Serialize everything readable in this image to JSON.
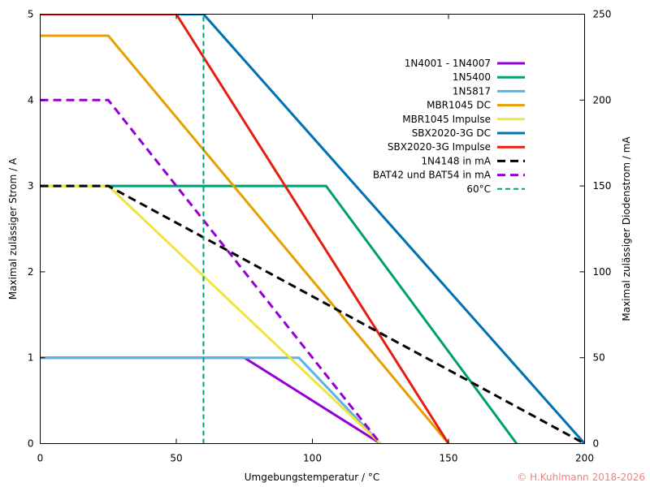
{
  "chart_data": {
    "type": "line",
    "xlabel": "Umgebungstemperatur / °C",
    "ylabel": "Maximal zulässiger Strom / A",
    "y2label": "Maximal zulässiger Diodenstrom / mA",
    "xlim": [
      0,
      200
    ],
    "ylim": [
      0,
      5
    ],
    "y2lim": [
      0,
      250
    ],
    "x_ticks": [
      0,
      50,
      100,
      150,
      200
    ],
    "y_ticks": [
      0,
      1,
      2,
      3,
      4,
      5
    ],
    "y2_ticks": [
      0,
      50,
      100,
      150,
      200,
      250
    ],
    "grid": false,
    "legend_position": "top-right",
    "copyright": "© H.Kuhlmann 2018-2026",
    "series": [
      {
        "name": "1N4001 - 1N4007",
        "color": "#9400d3",
        "dash": "solid",
        "axis": "y",
        "x": [
          0,
          75,
          125
        ],
        "y": [
          1,
          1,
          0
        ]
      },
      {
        "name": "1N5400",
        "color": "#009e73",
        "dash": "solid",
        "axis": "y",
        "x": [
          0,
          105,
          175
        ],
        "y": [
          3,
          3,
          0
        ]
      },
      {
        "name": "1N5817",
        "color": "#56b4e9",
        "dash": "solid",
        "axis": "y",
        "x": [
          0,
          95,
          125
        ],
        "y": [
          1,
          1,
          0
        ]
      },
      {
        "name": "MBR1045 DC",
        "color": "#e69f00",
        "dash": "solid",
        "axis": "y",
        "x": [
          0,
          25,
          150
        ],
        "y": [
          4.75,
          4.75,
          0
        ]
      },
      {
        "name": "MBR1045 Impulse",
        "color": "#f0e442",
        "dash": "solid",
        "axis": "y",
        "x": [
          0,
          25,
          125
        ],
        "y": [
          3,
          3,
          0
        ]
      },
      {
        "name": "SBX2020-3G DC",
        "color": "#0072b2",
        "dash": "solid",
        "axis": "y",
        "x": [
          0,
          60,
          200
        ],
        "y": [
          5,
          5,
          0
        ]
      },
      {
        "name": "SBX2020-3G Impulse",
        "color": "#e51e10",
        "dash": "solid",
        "axis": "y",
        "x": [
          0,
          50,
          150
        ],
        "y": [
          5,
          5,
          0
        ]
      },
      {
        "name": "1N4148 in mA",
        "color": "#000000",
        "dash": "dashed",
        "axis": "y2",
        "x": [
          0,
          25,
          200
        ],
        "y": [
          150,
          150,
          0
        ]
      },
      {
        "name": "BAT42 und BAT54 in mA",
        "color": "#9400d3",
        "dash": "dashed",
        "axis": "y2",
        "x": [
          0,
          25,
          125
        ],
        "y": [
          200,
          200,
          0
        ]
      },
      {
        "name": "60°C",
        "color": "#009e73",
        "dash": "dashed-thin",
        "axis": "y",
        "x": [
          60,
          60
        ],
        "y": [
          0,
          5
        ]
      }
    ]
  }
}
